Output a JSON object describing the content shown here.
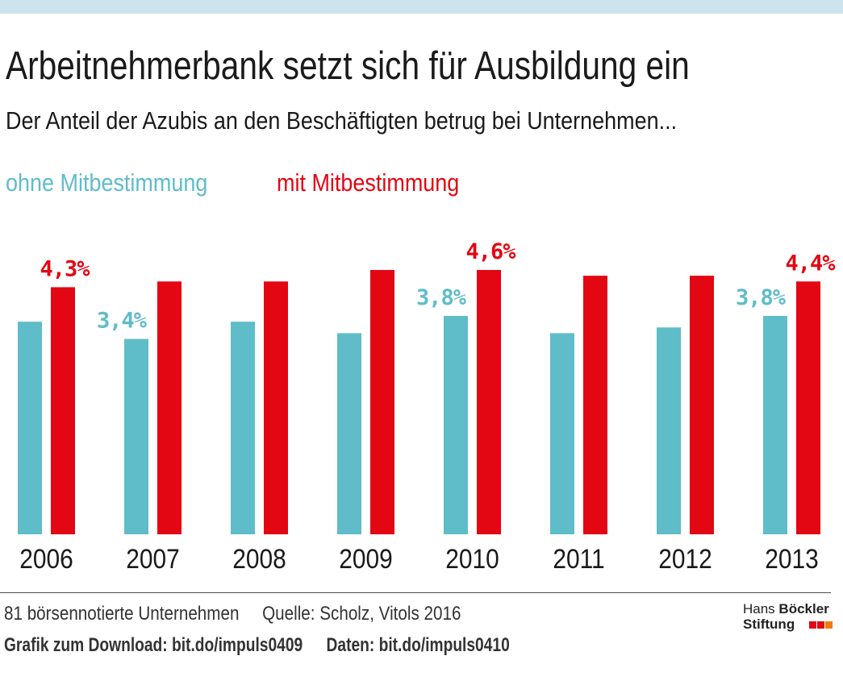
{
  "header": {
    "title": "Arbeitnehmerbank setzt sich für Ausbildung ein",
    "subtitle": "Der Anteil der Azubis an den Beschäftigten betrug bei Unternehmen..."
  },
  "colors": {
    "top_bar": "#cde4ee",
    "ohne": "#5fbcc9",
    "mit": "#e30613",
    "text": "#1a1a1a",
    "logo_red": "#e30613",
    "logo_orange": "#f07d00"
  },
  "chart_data": {
    "type": "bar",
    "categories": [
      "2006",
      "2007",
      "2008",
      "2009",
      "2010",
      "2011",
      "2012",
      "2013"
    ],
    "series": [
      {
        "name": "ohne Mitbestimmung",
        "values": [
          3.7,
          3.4,
          3.7,
          3.5,
          3.8,
          3.5,
          3.6,
          3.8
        ],
        "labels": [
          "",
          "3,4%",
          "",
          "",
          "3,8%",
          "",
          "",
          "3,8%"
        ]
      },
      {
        "name": "mit Mitbestimmung",
        "values": [
          4.3,
          4.4,
          4.4,
          4.6,
          4.6,
          4.5,
          4.5,
          4.4
        ],
        "labels": [
          "4,3%",
          "",
          "",
          "",
          "4,6%",
          "",
          "",
          "4,4%"
        ]
      }
    ],
    "ylim": [
      0,
      4.6
    ],
    "xlabel": "",
    "ylabel": "",
    "legend_position": "top-left",
    "grid": false
  },
  "footer": {
    "note": "81 börsennotierte Unternehmen",
    "source": "Quelle: Scholz, Vitols 2016",
    "download": "Grafik zum Download: bit.do/impuls0409",
    "data_link": "Daten: bit.do/impuls0410"
  },
  "logo": {
    "line1_regular": "Hans",
    "line1_bold": "Böckler",
    "line2": "Stiftung"
  }
}
